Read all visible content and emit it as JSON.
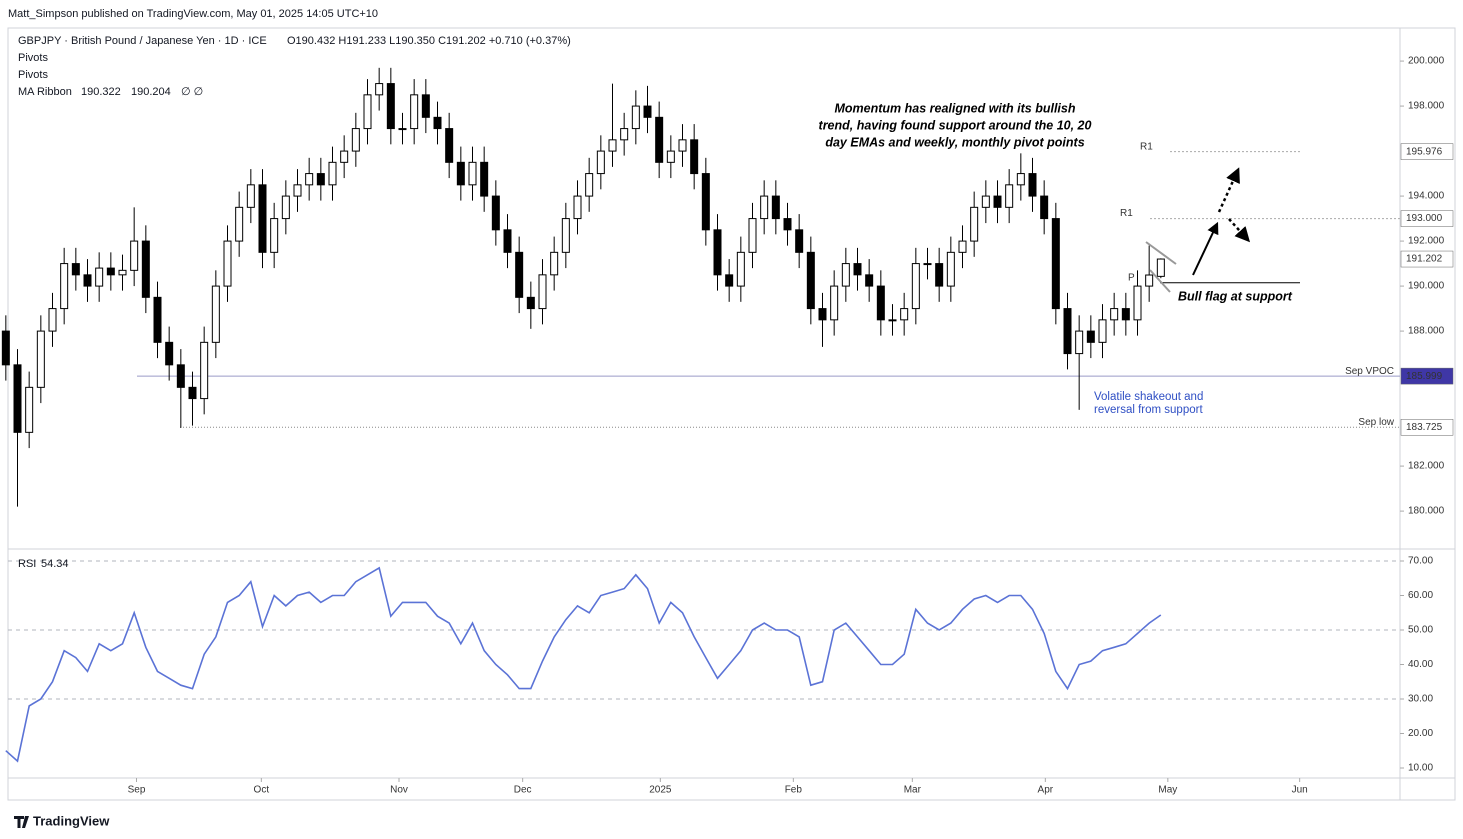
{
  "header": {
    "published": "Matt_Simpson published on TradingView.com, May 01, 2025 14:05 UTC+10",
    "footer": "TradingView"
  },
  "chart_data": [
    {
      "type": "candlestick",
      "title": "GBPJPY · British Pound / Japanese Yen · 1D · ICE",
      "quote": "O190.432  H191.233  L190.350  C191.202  +0.710 (+0.37%)",
      "indicators": [
        "Pivots",
        "Pivots"
      ],
      "ma_ribbon": {
        "name": "MA Ribbon",
        "values": [
          190.322,
          190.204
        ],
        "colors": [
          "#f5a623",
          "#5b9bd5"
        ],
        "null_marks": "∅  ∅"
      },
      "up_color": "#ffffff",
      "down_color": "#000000",
      "outline": "#000000",
      "open": [
        188,
        186.5,
        183.5,
        185.5,
        188,
        189,
        191,
        190.5,
        190,
        190.8,
        190.5,
        190.7,
        192,
        189.5,
        187.5,
        186.5,
        185.5,
        185,
        187.5,
        190,
        192,
        193.5,
        194.5,
        191.5,
        193,
        194,
        194.5,
        195,
        194.5,
        195.5,
        196,
        197,
        198.5,
        199,
        197,
        197,
        198.5,
        197.5,
        197,
        195.5,
        194.5,
        195.5,
        194,
        192.5,
        191.5,
        189.5,
        189,
        190.5,
        191.5,
        193,
        194,
        195,
        196,
        196.5,
        197,
        198,
        197.5,
        195.5,
        196,
        196.5,
        195,
        192.5,
        190.5,
        190,
        191.5,
        193,
        194,
        193,
        192.5,
        191.5,
        189,
        188.5,
        190,
        191,
        190.5,
        190,
        188.5,
        188.5,
        189,
        191,
        191,
        190,
        191.5,
        192,
        193.5,
        194,
        193.5,
        194.5,
        195,
        194,
        193,
        189,
        187,
        188,
        187.5,
        188.5,
        189,
        188.5,
        190,
        190.432
      ],
      "high": [
        188.7,
        187.2,
        186.2,
        188.7,
        189.7,
        191.7,
        191.7,
        191.2,
        191.5,
        191.5,
        191.4,
        193.5,
        192.7,
        190.2,
        188.2,
        187.2,
        186.2,
        188.2,
        190.7,
        192.7,
        194.2,
        195.2,
        195.2,
        193.7,
        194.7,
        195.2,
        195.7,
        195.7,
        196.2,
        196.7,
        197.7,
        199.2,
        199.7,
        199.7,
        197.7,
        199.2,
        199.2,
        198.2,
        197.7,
        196.2,
        196.2,
        196.2,
        194.7,
        193.2,
        192.2,
        190.2,
        191.2,
        192.2,
        193.7,
        194.7,
        195.7,
        196.7,
        199,
        197.7,
        198.7,
        198.9,
        198.2,
        196.7,
        197.2,
        197.2,
        195.7,
        193.2,
        191.2,
        192.2,
        193.7,
        194.7,
        194.7,
        193.7,
        193.2,
        192.2,
        189.7,
        190.7,
        191.7,
        191.7,
        191.2,
        190.7,
        189.2,
        189.7,
        191.7,
        191.7,
        191.7,
        192.2,
        192.7,
        194.2,
        194.7,
        194.7,
        195.2,
        195.9,
        195.7,
        194.7,
        193.7,
        189.7,
        188.7,
        188.7,
        189.2,
        189.7,
        189.7,
        190.7,
        191.8,
        191.233
      ],
      "low": [
        185.8,
        180.2,
        182.8,
        184.8,
        187.3,
        188.3,
        189.8,
        189.3,
        189.3,
        189.8,
        189.8,
        190,
        188.8,
        186.8,
        185.8,
        183.7,
        183.8,
        184.3,
        186.8,
        189.3,
        191.3,
        192.8,
        190.8,
        190.8,
        192.3,
        193.3,
        193.8,
        193.8,
        193.8,
        194.8,
        195.3,
        196.3,
        197.8,
        196.3,
        196.3,
        196.3,
        196.8,
        196.3,
        194.8,
        193.8,
        193.8,
        193.3,
        191.8,
        190.8,
        188.8,
        188.1,
        188.3,
        189.8,
        190.8,
        192.3,
        193.3,
        194.3,
        195.3,
        195.8,
        196.3,
        196.8,
        194.8,
        194.8,
        195.3,
        194.3,
        191.8,
        189.8,
        189.3,
        189.3,
        190.8,
        192.3,
        192.3,
        191.8,
        190.8,
        188.3,
        187.3,
        187.8,
        189.3,
        189.8,
        189.3,
        187.8,
        187.8,
        187.8,
        188.3,
        190.3,
        189.3,
        189.3,
        190.8,
        191.3,
        192.8,
        192.8,
        192.8,
        193.8,
        193.3,
        192.3,
        188.3,
        186.3,
        184.5,
        186.8,
        186.8,
        187.8,
        187.8,
        187.8,
        189.3,
        190.35
      ],
      "close": [
        186.5,
        183.5,
        185.5,
        188,
        189,
        191,
        190.5,
        190,
        190.8,
        190.5,
        190.7,
        192,
        189.5,
        187.5,
        186.5,
        185.5,
        185,
        187.5,
        190,
        192,
        193.5,
        194.5,
        191.5,
        193,
        194,
        194.5,
        195,
        194.5,
        195.5,
        196,
        197,
        198.5,
        199,
        197,
        197,
        198.5,
        197.5,
        197,
        195.5,
        194.5,
        195.5,
        194,
        192.5,
        191.5,
        189.5,
        189,
        190.5,
        191.5,
        193,
        194,
        195,
        196,
        196.5,
        197,
        198,
        197.5,
        195.5,
        196,
        196.5,
        195,
        192.5,
        190.5,
        190,
        191.5,
        193,
        194,
        193,
        192.5,
        191.5,
        189,
        188.5,
        190,
        191,
        190.5,
        190,
        188.5,
        188.5,
        189,
        191,
        191,
        190,
        191.5,
        192,
        193.5,
        194,
        193.5,
        194.5,
        195,
        194,
        193,
        189,
        187,
        188,
        187.5,
        188.5,
        189,
        188.5,
        190,
        190.492,
        191.202
      ],
      "last_price": {
        "value": 191.202,
        "label": "191.202"
      },
      "xlim": [
        -0.5,
        119.5
      ],
      "xticks": [
        {
          "value": 11.2,
          "label": "Sep"
        },
        {
          "value": 21.9,
          "label": "Oct"
        },
        {
          "value": 33.7,
          "label": "Nov"
        },
        {
          "value": 44.3,
          "label": "Dec"
        },
        {
          "value": 56.1,
          "label": "2025"
        },
        {
          "value": 67.5,
          "label": "Feb"
        },
        {
          "value": 77.7,
          "label": "Mar"
        },
        {
          "value": 89.1,
          "label": "Apr"
        },
        {
          "value": 99.6,
          "label": "May"
        },
        {
          "value": 110.9,
          "label": "Jun"
        }
      ],
      "ylim": [
        178.36,
        201.47
      ],
      "yticks": [
        {
          "value": 180,
          "label": "180.000"
        },
        {
          "value": 182,
          "label": "182.000"
        },
        {
          "value": 188,
          "label": "188.000"
        },
        {
          "value": 190,
          "label": "190.000"
        },
        {
          "value": 192,
          "label": "192.000"
        },
        {
          "value": 194,
          "label": "194.000"
        },
        {
          "value": 198,
          "label": "198.000"
        },
        {
          "value": 200,
          "label": "200.000"
        }
      ],
      "levels": [
        {
          "name": "R1",
          "value": 195.976,
          "label": "195.976"
        },
        {
          "name": "R1",
          "value": 193,
          "label": "193.000"
        },
        {
          "name": "P",
          "value": 190.15
        },
        {
          "name": "Sep VPOC",
          "value": 185.999,
          "label": "185.999"
        },
        {
          "name": "Sep low",
          "value": 183.725,
          "label": "183.725"
        }
      ],
      "annotations": [
        {
          "lines": [
            "Momentum has realigned with its bullish",
            "trend, having found support around the 10, 20",
            "day EMAs and weekly, monthly pivot points"
          ]
        },
        {
          "lines": [
            "Bull flag at support"
          ]
        },
        {
          "lines": [
            "Volatile shakeout and",
            "reversal from support"
          ]
        }
      ]
    },
    {
      "type": "line",
      "title": "RSI",
      "last": 54.34,
      "color": "#5b73d6",
      "values": [
        15,
        12,
        28,
        30,
        35,
        44,
        42,
        38,
        46,
        44,
        46,
        55,
        45,
        38,
        36,
        34,
        33,
        43,
        48,
        58,
        60,
        64,
        51,
        60,
        57,
        60,
        61,
        58,
        60,
        60,
        64,
        66,
        68,
        54,
        58,
        58,
        58,
        54,
        52,
        46,
        52,
        44,
        40,
        37,
        33,
        33,
        41,
        48,
        53,
        57,
        55,
        60,
        61,
        62,
        66,
        62,
        52,
        58,
        55,
        48,
        42,
        36,
        40,
        44,
        50,
        52,
        50,
        50,
        48,
        34,
        35,
        50,
        52,
        48,
        44,
        40,
        40,
        43,
        56,
        52,
        50,
        52,
        56,
        59,
        60,
        58,
        60,
        60,
        56,
        49,
        38,
        33,
        40,
        41,
        44,
        45,
        46,
        49,
        52,
        54.34
      ],
      "ylim": [
        7.1,
        72.9
      ],
      "yticks": [
        {
          "value": 10,
          "label": "10.00"
        },
        {
          "value": 20,
          "label": "20.00"
        },
        {
          "value": 30,
          "label": "30.00"
        },
        {
          "value": 40,
          "label": "40.00"
        },
        {
          "value": 50,
          "label": "50.00"
        },
        {
          "value": 60,
          "label": "60.00"
        },
        {
          "value": 70,
          "label": "70.00"
        }
      ],
      "bands": [
        70,
        50,
        30
      ]
    }
  ]
}
